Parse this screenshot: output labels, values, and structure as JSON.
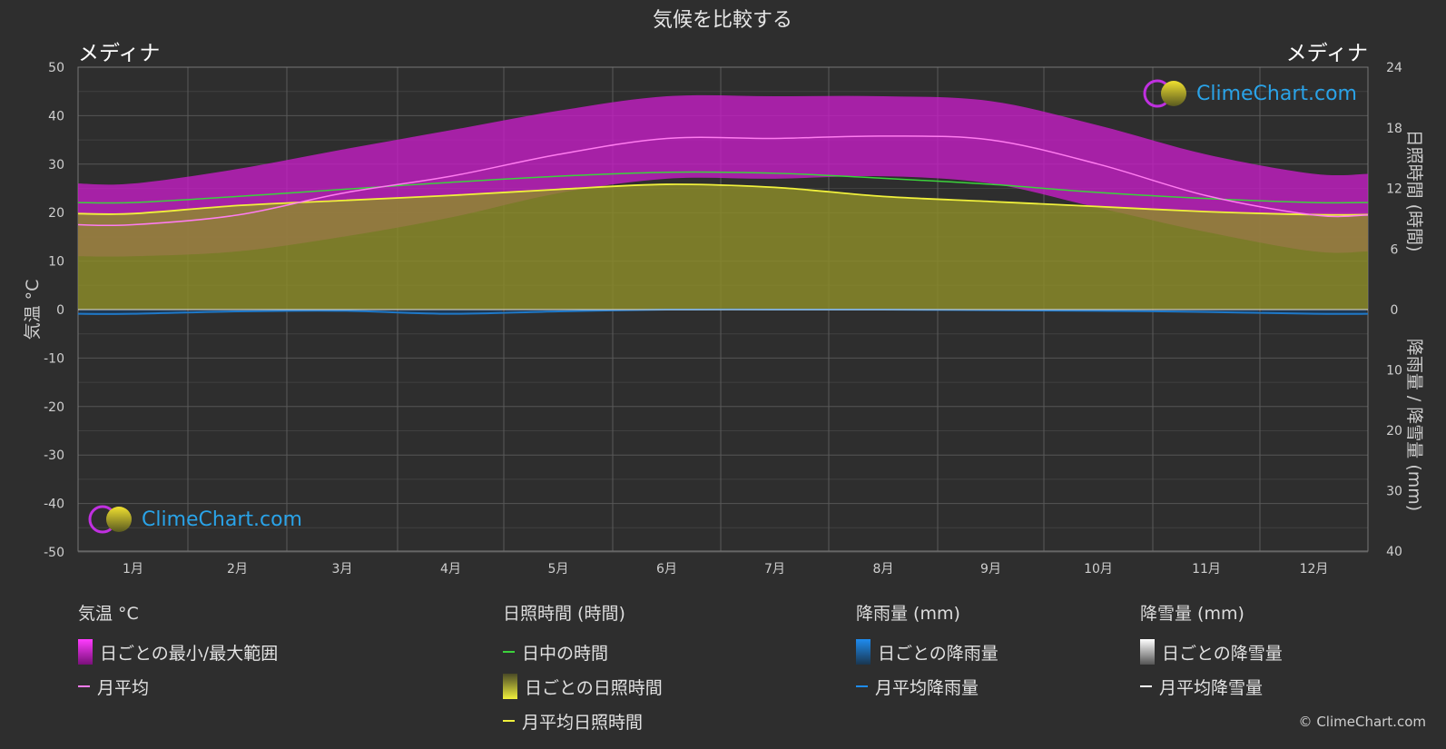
{
  "title": "気候を比較する",
  "location_left": "メディナ",
  "location_right": "メディナ",
  "copyright": "© ClimeChart.com",
  "logo_text": "ClimeChart.com",
  "axes": {
    "left_label": "気温 °C",
    "right_top_label": "日照時間 (時間)",
    "right_bottom_label": "降雨量 / 降雪量 (mm)",
    "temp_ticks": [
      50,
      40,
      30,
      20,
      10,
      0,
      -10,
      -20,
      -30,
      -40,
      -50
    ],
    "sun_ticks": [
      24,
      18,
      12,
      6,
      0
    ],
    "precip_ticks": [
      10,
      20,
      30,
      40
    ]
  },
  "legend": {
    "temp": {
      "title": "気温 °C",
      "range": "日ごとの最小/最大範囲",
      "avg": "月平均"
    },
    "sun": {
      "title": "日照時間 (時間)",
      "daylight": "日中の時間",
      "daily_sun": "日ごとの日照時間",
      "avg_sun": "月平均日照時間"
    },
    "rain": {
      "title": "降雨量 (mm)",
      "daily": "日ごとの降雨量",
      "avg": "月平均降雨量"
    },
    "snow": {
      "title": "降雪量 (mm)",
      "daily": "日ごとの降雪量",
      "avg": "月平均降雪量"
    }
  },
  "colors": {
    "background": "#2e2e2e",
    "temp_range": "#c81ec8",
    "temp_avg": "#ff7cf0",
    "daylight": "#3cd23c",
    "sunshine_fill": "#8c8c28",
    "sunshine_avg": "#f0f03c",
    "rain": "#1e78c8",
    "snow": "#ffffff"
  },
  "chart_data": {
    "type": "area",
    "months": [
      "1月",
      "2月",
      "3月",
      "4月",
      "5月",
      "6月",
      "7月",
      "8月",
      "9月",
      "10月",
      "11月",
      "12月"
    ],
    "temp_ylim": [
      -50,
      50
    ],
    "sun_ylim": [
      0,
      24
    ],
    "precip_ylim": [
      0,
      40
    ],
    "series": [
      {
        "name": "月平均",
        "unit": "°C",
        "values": [
          17.5,
          19.5,
          24,
          27.5,
          32,
          35.3,
          35.3,
          35.8,
          35,
          30,
          23.5,
          19.5
        ]
      },
      {
        "name": "日ごとの最小/最大範囲 (最高)",
        "unit": "°C",
        "values": [
          26,
          29,
          33,
          37,
          41,
          44,
          44,
          44,
          43,
          38,
          32,
          28
        ]
      },
      {
        "name": "日ごとの最小/最大範囲 (最低)",
        "unit": "°C",
        "values": [
          11,
          12,
          15,
          19,
          24,
          27,
          27,
          27.5,
          26,
          21,
          16,
          12
        ]
      },
      {
        "name": "日中の時間",
        "unit": "時間",
        "values": [
          10.6,
          11.2,
          11.9,
          12.6,
          13.2,
          13.6,
          13.5,
          13.0,
          12.4,
          11.6,
          11.0,
          10.6
        ]
      },
      {
        "name": "月平均日照時間",
        "unit": "時間",
        "values": [
          9.5,
          10.3,
          10.8,
          11.3,
          11.9,
          12.4,
          12.1,
          11.2,
          10.7,
          10.2,
          9.7,
          9.4
        ]
      },
      {
        "name": "月平均降雨量",
        "unit": "mm",
        "values": [
          0.7,
          0.3,
          0.2,
          0.7,
          0.3,
          0.0,
          0.0,
          0.0,
          0.1,
          0.2,
          0.4,
          0.7
        ]
      },
      {
        "name": "月平均降雪量",
        "unit": "mm",
        "values": [
          0,
          0,
          0,
          0,
          0,
          0,
          0,
          0,
          0,
          0,
          0,
          0
        ]
      }
    ]
  }
}
